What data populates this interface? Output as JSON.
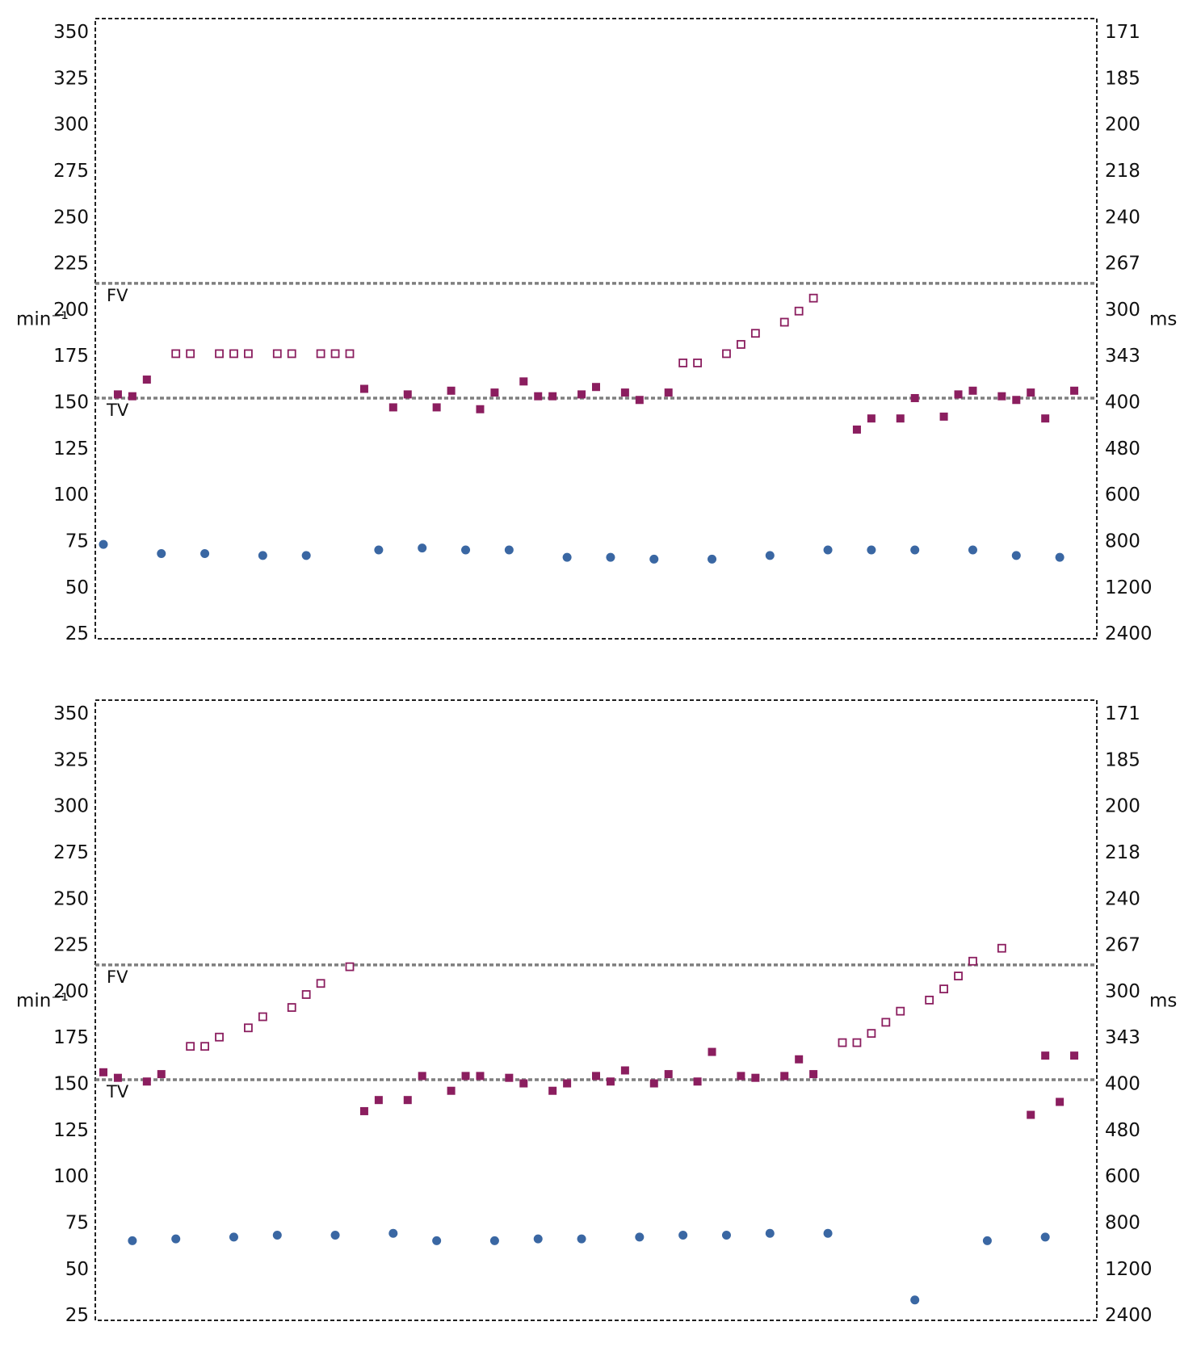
{
  "colors": {
    "atrial": "#8b1e5f",
    "ventricular": "#3a67a3",
    "threshold_line": "#7f7f7f",
    "frame": "#222222"
  },
  "chart_data": [
    {
      "type": "scatter",
      "y_left_label": "min⁻¹",
      "y_right_label": "ms",
      "ylim": [
        22,
        357
      ],
      "y_ticks": [
        350,
        325,
        300,
        275,
        250,
        225,
        200,
        175,
        150,
        125,
        100,
        75,
        50,
        25
      ],
      "y_right_ticks": [
        "171",
        "185",
        "200",
        "218",
        "240",
        "267",
        "300",
        "343",
        "400",
        "480",
        "600",
        "800",
        "1200",
        "2400"
      ],
      "xlim": [
        0,
        68
      ],
      "grid": false,
      "thresholds": [
        {
          "label": "FV",
          "value": 214
        },
        {
          "label": "TV",
          "value": 152
        }
      ],
      "atrial_filled": [
        {
          "x": 1,
          "y": 154
        },
        {
          "x": 2,
          "y": 153
        },
        {
          "x": 3,
          "y": 162
        },
        {
          "x": 18,
          "y": 157
        },
        {
          "x": 20,
          "y": 147
        },
        {
          "x": 21,
          "y": 154
        },
        {
          "x": 23,
          "y": 147
        },
        {
          "x": 24,
          "y": 156
        },
        {
          "x": 26,
          "y": 146
        },
        {
          "x": 27,
          "y": 155
        },
        {
          "x": 29,
          "y": 161
        },
        {
          "x": 30,
          "y": 153
        },
        {
          "x": 31,
          "y": 153
        },
        {
          "x": 33,
          "y": 154
        },
        {
          "x": 34,
          "y": 158
        },
        {
          "x": 36,
          "y": 155
        },
        {
          "x": 37,
          "y": 151
        },
        {
          "x": 39,
          "y": 155
        },
        {
          "x": 52,
          "y": 135
        },
        {
          "x": 53,
          "y": 141
        },
        {
          "x": 55,
          "y": 141
        },
        {
          "x": 56,
          "y": 152
        },
        {
          "x": 58,
          "y": 142
        },
        {
          "x": 59,
          "y": 154
        },
        {
          "x": 60,
          "y": 156
        },
        {
          "x": 62,
          "y": 153
        },
        {
          "x": 63,
          "y": 151
        },
        {
          "x": 64,
          "y": 155
        },
        {
          "x": 65,
          "y": 141
        },
        {
          "x": 67,
          "y": 156
        }
      ],
      "atrial_open": [
        {
          "x": 5,
          "y": 176
        },
        {
          "x": 6,
          "y": 176
        },
        {
          "x": 8,
          "y": 176
        },
        {
          "x": 9,
          "y": 176
        },
        {
          "x": 10,
          "y": 176
        },
        {
          "x": 12,
          "y": 176
        },
        {
          "x": 13,
          "y": 176
        },
        {
          "x": 15,
          "y": 176
        },
        {
          "x": 16,
          "y": 176
        },
        {
          "x": 17,
          "y": 176
        },
        {
          "x": 40,
          "y": 171
        },
        {
          "x": 41,
          "y": 171
        },
        {
          "x": 43,
          "y": 176
        },
        {
          "x": 44,
          "y": 181
        },
        {
          "x": 45,
          "y": 187
        },
        {
          "x": 47,
          "y": 193
        },
        {
          "x": 48,
          "y": 199
        },
        {
          "x": 49,
          "y": 206
        }
      ],
      "ventricular": [
        {
          "x": 0,
          "y": 73
        },
        {
          "x": 4,
          "y": 68
        },
        {
          "x": 7,
          "y": 68
        },
        {
          "x": 11,
          "y": 67
        },
        {
          "x": 14,
          "y": 67
        },
        {
          "x": 19,
          "y": 70
        },
        {
          "x": 22,
          "y": 71
        },
        {
          "x": 25,
          "y": 70
        },
        {
          "x": 28,
          "y": 70
        },
        {
          "x": 32,
          "y": 66
        },
        {
          "x": 35,
          "y": 66
        },
        {
          "x": 38,
          "y": 65
        },
        {
          "x": 42,
          "y": 65
        },
        {
          "x": 46,
          "y": 67
        },
        {
          "x": 50,
          "y": 70
        },
        {
          "x": 53,
          "y": 70
        },
        {
          "x": 56,
          "y": 70
        },
        {
          "x": 60,
          "y": 70
        },
        {
          "x": 63,
          "y": 67
        },
        {
          "x": 66,
          "y": 66
        }
      ]
    },
    {
      "type": "scatter",
      "y_left_label": "min⁻¹",
      "y_right_label": "ms",
      "ylim": [
        22,
        357
      ],
      "y_ticks": [
        350,
        325,
        300,
        275,
        250,
        225,
        200,
        175,
        150,
        125,
        100,
        75,
        50,
        25
      ],
      "y_right_ticks": [
        "171",
        "185",
        "200",
        "218",
        "240",
        "267",
        "300",
        "343",
        "400",
        "480",
        "600",
        "800",
        "1200",
        "2400"
      ],
      "xlim": [
        0,
        68
      ],
      "grid": false,
      "thresholds": [
        {
          "label": "FV",
          "value": 214
        },
        {
          "label": "TV",
          "value": 152
        }
      ],
      "atrial_filled": [
        {
          "x": 0,
          "y": 156
        },
        {
          "x": 1,
          "y": 153
        },
        {
          "x": 3,
          "y": 151
        },
        {
          "x": 4,
          "y": 155
        },
        {
          "x": 18,
          "y": 135
        },
        {
          "x": 19,
          "y": 141
        },
        {
          "x": 21,
          "y": 141
        },
        {
          "x": 22,
          "y": 154
        },
        {
          "x": 24,
          "y": 146
        },
        {
          "x": 25,
          "y": 154
        },
        {
          "x": 26,
          "y": 154
        },
        {
          "x": 28,
          "y": 153
        },
        {
          "x": 29,
          "y": 150
        },
        {
          "x": 31,
          "y": 146
        },
        {
          "x": 32,
          "y": 150
        },
        {
          "x": 34,
          "y": 154
        },
        {
          "x": 35,
          "y": 151
        },
        {
          "x": 36,
          "y": 157
        },
        {
          "x": 38,
          "y": 150
        },
        {
          "x": 39,
          "y": 155
        },
        {
          "x": 41,
          "y": 151
        },
        {
          "x": 42,
          "y": 167
        },
        {
          "x": 44,
          "y": 154
        },
        {
          "x": 45,
          "y": 153
        },
        {
          "x": 47,
          "y": 154
        },
        {
          "x": 48,
          "y": 163
        },
        {
          "x": 49,
          "y": 155
        },
        {
          "x": 64,
          "y": 133
        },
        {
          "x": 65,
          "y": 165
        },
        {
          "x": 66,
          "y": 140
        },
        {
          "x": 67,
          "y": 165
        }
      ],
      "atrial_open": [
        {
          "x": 6,
          "y": 170
        },
        {
          "x": 7,
          "y": 170
        },
        {
          "x": 8,
          "y": 175
        },
        {
          "x": 10,
          "y": 180
        },
        {
          "x": 11,
          "y": 186
        },
        {
          "x": 13,
          "y": 191
        },
        {
          "x": 14,
          "y": 198
        },
        {
          "x": 15,
          "y": 204
        },
        {
          "x": 17,
          "y": 213
        },
        {
          "x": 51,
          "y": 172
        },
        {
          "x": 52,
          "y": 172
        },
        {
          "x": 53,
          "y": 177
        },
        {
          "x": 54,
          "y": 183
        },
        {
          "x": 55,
          "y": 189
        },
        {
          "x": 57,
          "y": 195
        },
        {
          "x": 58,
          "y": 201
        },
        {
          "x": 59,
          "y": 208
        },
        {
          "x": 60,
          "y": 216
        },
        {
          "x": 62,
          "y": 223
        }
      ],
      "ventricular": [
        {
          "x": 2,
          "y": 65
        },
        {
          "x": 5,
          "y": 66
        },
        {
          "x": 9,
          "y": 67
        },
        {
          "x": 12,
          "y": 68
        },
        {
          "x": 16,
          "y": 68
        },
        {
          "x": 20,
          "y": 69
        },
        {
          "x": 23,
          "y": 65
        },
        {
          "x": 27,
          "y": 65
        },
        {
          "x": 30,
          "y": 66
        },
        {
          "x": 33,
          "y": 66
        },
        {
          "x": 37,
          "y": 67
        },
        {
          "x": 40,
          "y": 68
        },
        {
          "x": 43,
          "y": 68
        },
        {
          "x": 46,
          "y": 69
        },
        {
          "x": 50,
          "y": 69
        },
        {
          "x": 56,
          "y": 33
        },
        {
          "x": 61,
          "y": 65
        },
        {
          "x": 65,
          "y": 67
        }
      ]
    }
  ]
}
